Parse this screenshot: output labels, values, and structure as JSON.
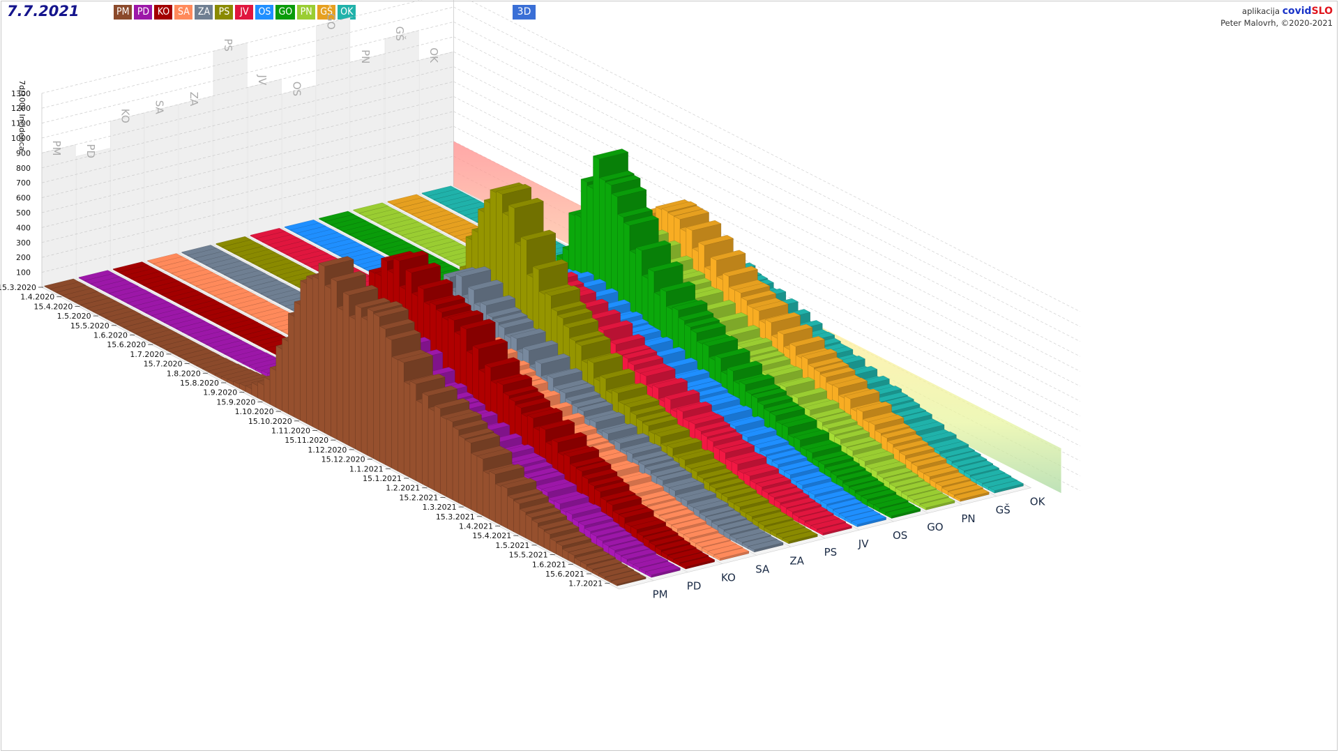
{
  "header": {
    "date": "7.7.2021",
    "mode_button": "3D",
    "credits_line1_prefix": "aplikacija ",
    "brand_part1": "covid",
    "brand_part2": "SLO",
    "credits_line2": "Peter Malovrh, ©2020-2021"
  },
  "regions": [
    {
      "code": "PM",
      "color": "#8b4a2b"
    },
    {
      "code": "PD",
      "color": "#9c17a8"
    },
    {
      "code": "KO",
      "color": "#a30000"
    },
    {
      "code": "SA",
      "color": "#ff8a5b"
    },
    {
      "code": "ZA",
      "color": "#6f7f92"
    },
    {
      "code": "PS",
      "color": "#8a8a00"
    },
    {
      "code": "JV",
      "color": "#e0163e"
    },
    {
      "code": "OS",
      "color": "#1f8fff"
    },
    {
      "code": "GO",
      "color": "#0a9c0a"
    },
    {
      "code": "PN",
      "color": "#9acd32"
    },
    {
      "code": "GŠ",
      "color": "#e6a020"
    },
    {
      "code": "OK",
      "color": "#20b2aa"
    }
  ],
  "chart_data": {
    "type": "area",
    "ylabel": "7d/100k Incidenca",
    "ylim": [
      0,
      1300
    ],
    "yticks": [
      100,
      200,
      300,
      400,
      500,
      600,
      700,
      800,
      900,
      1000,
      1100,
      1200,
      1300
    ],
    "date_ticks": [
      "15.3.2020",
      "1.4.2020",
      "15.4.2020",
      "1.5.2020",
      "15.5.2020",
      "1.6.2020",
      "15.6.2020",
      "1.7.2020",
      "15.7.2020",
      "1.8.2020",
      "15.8.2020",
      "1.9.2020",
      "15.9.2020",
      "1.10.2020",
      "15.10.2020",
      "1.11.2020",
      "15.11.2020",
      "1.12.2020",
      "15.12.2020",
      "1.1.2021",
      "15.1.2021",
      "1.2.2021",
      "15.2.2021",
      "1.3.2021",
      "15.3.2021",
      "1.4.2021",
      "15.4.2021",
      "1.5.2021",
      "15.5.2021",
      "1.6.2021",
      "15.6.2021",
      "1.7.2021"
    ],
    "back_wall_values": [
      900,
      820,
      1000,
      1000,
      1000,
      1300,
      1000,
      900,
      1300,
      1000,
      1100,
      900
    ],
    "series": [
      {
        "name": "PM",
        "values": [
          5,
          5,
          5,
          5,
          5,
          5,
          5,
          5,
          5,
          10,
          20,
          40,
          150,
          500,
          900,
          1050,
          950,
          900,
          950,
          750,
          600,
          550,
          500,
          420,
          320,
          250,
          170,
          120,
          70,
          40,
          20,
          10
        ]
      },
      {
        "name": "PD",
        "values": [
          5,
          5,
          5,
          5,
          5,
          5,
          5,
          5,
          5,
          10,
          20,
          40,
          100,
          250,
          450,
          560,
          620,
          640,
          580,
          480,
          420,
          380,
          330,
          290,
          250,
          210,
          160,
          120,
          80,
          50,
          25,
          15
        ]
      },
      {
        "name": "KO",
        "values": [
          5,
          5,
          5,
          5,
          5,
          5,
          5,
          5,
          5,
          10,
          25,
          60,
          200,
          500,
          850,
          1000,
          950,
          870,
          820,
          780,
          650,
          560,
          480,
          430,
          370,
          300,
          230,
          160,
          100,
          60,
          30,
          15
        ]
      },
      {
        "name": "SA",
        "values": [
          5,
          5,
          5,
          5,
          5,
          5,
          5,
          5,
          5,
          10,
          20,
          40,
          150,
          400,
          650,
          680,
          620,
          560,
          520,
          480,
          420,
          360,
          320,
          270,
          230,
          190,
          150,
          110,
          80,
          50,
          25,
          15
        ]
      },
      {
        "name": "ZA",
        "values": [
          5,
          5,
          5,
          5,
          5,
          5,
          5,
          5,
          5,
          10,
          20,
          40,
          150,
          400,
          700,
          760,
          700,
          620,
          560,
          500,
          430,
          360,
          310,
          260,
          230,
          190,
          150,
          110,
          80,
          50,
          25,
          15
        ]
      },
      {
        "name": "PS",
        "values": [
          5,
          5,
          5,
          5,
          5,
          5,
          5,
          5,
          5,
          10,
          20,
          50,
          200,
          600,
          1000,
          1300,
          1200,
          950,
          780,
          650,
          520,
          430,
          360,
          300,
          250,
          200,
          150,
          110,
          80,
          50,
          25,
          15
        ]
      },
      {
        "name": "JV",
        "values": [
          5,
          5,
          5,
          5,
          5,
          5,
          5,
          5,
          5,
          10,
          20,
          40,
          150,
          400,
          650,
          720,
          700,
          650,
          600,
          560,
          500,
          440,
          380,
          330,
          280,
          230,
          180,
          130,
          90,
          55,
          30,
          15
        ]
      },
      {
        "name": "OS",
        "values": [
          5,
          5,
          5,
          5,
          5,
          5,
          5,
          5,
          5,
          10,
          20,
          40,
          150,
          350,
          550,
          580,
          560,
          520,
          480,
          440,
          400,
          360,
          320,
          280,
          240,
          200,
          160,
          120,
          80,
          50,
          25,
          15
        ]
      },
      {
        "name": "GO",
        "values": [
          5,
          5,
          5,
          5,
          5,
          5,
          5,
          5,
          5,
          10,
          25,
          50,
          200,
          550,
          1000,
          1300,
          1150,
          900,
          760,
          640,
          560,
          480,
          420,
          360,
          300,
          250,
          190,
          130,
          90,
          55,
          30,
          15
        ]
      },
      {
        "name": "PN",
        "values": [
          5,
          5,
          5,
          5,
          5,
          5,
          5,
          5,
          5,
          10,
          20,
          40,
          150,
          400,
          700,
          760,
          720,
          650,
          590,
          530,
          470,
          420,
          370,
          320,
          280,
          230,
          180,
          130,
          90,
          55,
          30,
          15
        ]
      },
      {
        "name": "GŠ",
        "values": [
          5,
          5,
          5,
          5,
          5,
          5,
          5,
          5,
          5,
          10,
          20,
          40,
          150,
          420,
          780,
          900,
          850,
          760,
          680,
          600,
          540,
          480,
          430,
          380,
          330,
          280,
          220,
          160,
          110,
          65,
          35,
          15
        ]
      },
      {
        "name": "OK",
        "values": [
          5,
          5,
          5,
          5,
          5,
          5,
          5,
          5,
          5,
          10,
          20,
          40,
          150,
          350,
          500,
          560,
          520,
          480,
          440,
          400,
          360,
          320,
          290,
          250,
          220,
          190,
          150,
          110,
          80,
          50,
          25,
          15
        ]
      }
    ]
  }
}
